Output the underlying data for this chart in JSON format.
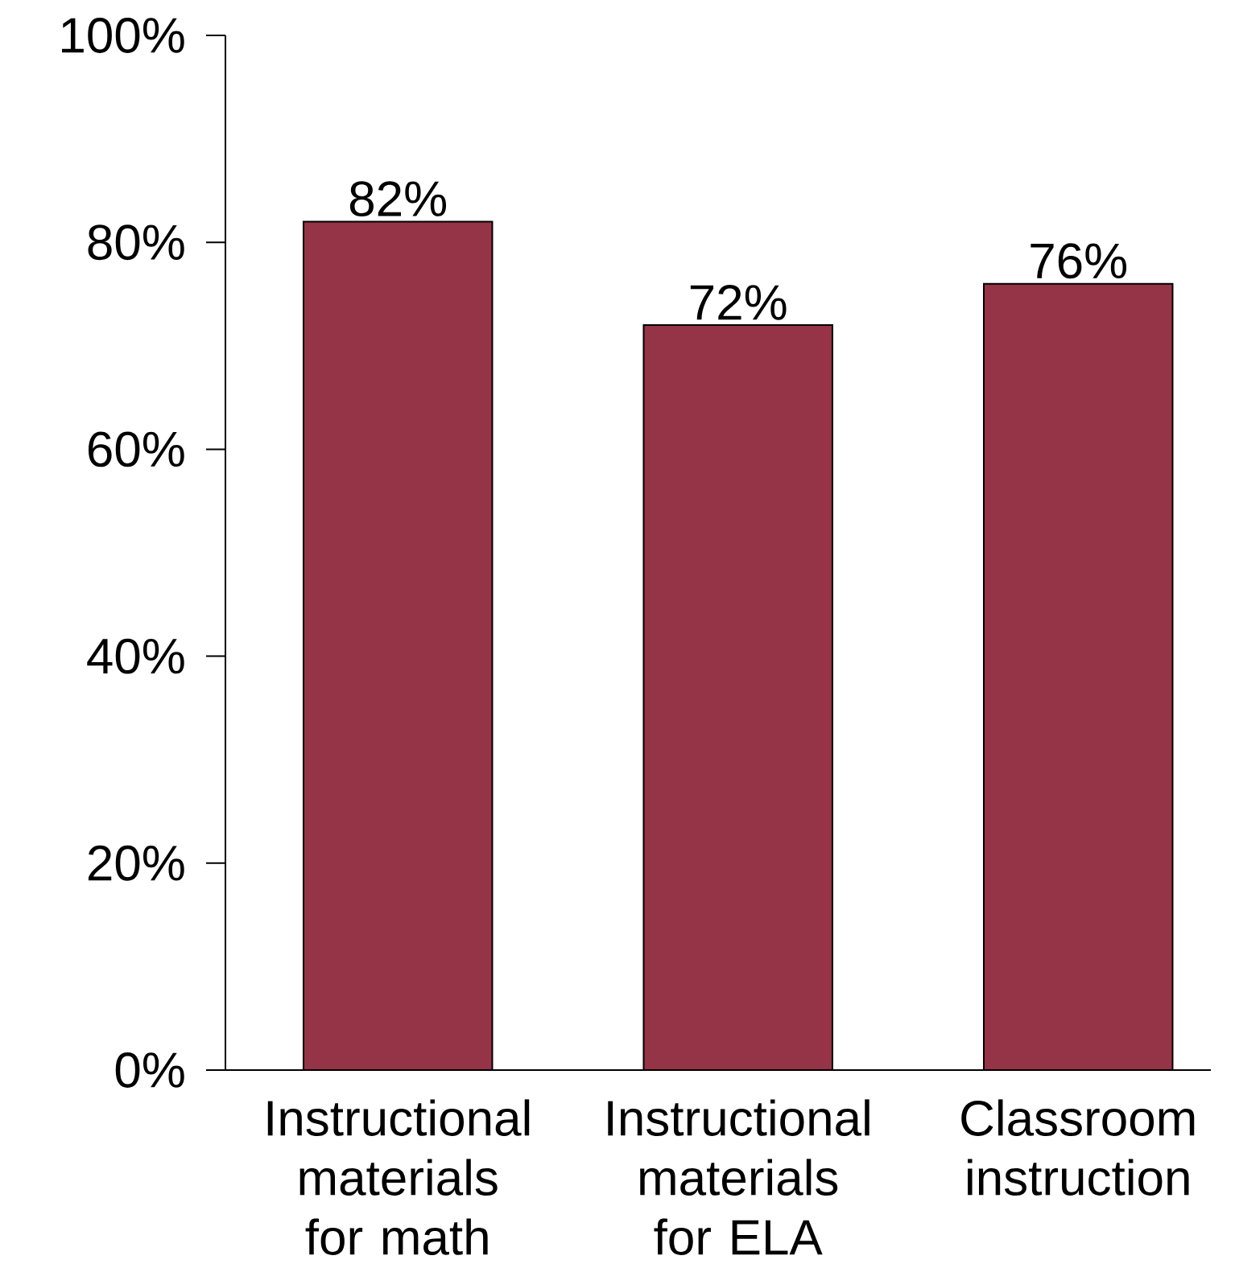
{
  "chart_data": {
    "type": "bar",
    "categories": [
      "Instructional materials for math",
      "Instructional materials for ELA",
      "Classroom instruction"
    ],
    "values": [
      82,
      72,
      76
    ],
    "value_labels": [
      "82%",
      "72%",
      "76%"
    ],
    "color": "#943446",
    "ylim": [
      0,
      100
    ],
    "yticks": [
      {
        "value": 0,
        "label": "0%"
      },
      {
        "value": 20,
        "label": "20%"
      },
      {
        "value": 40,
        "label": "40%"
      },
      {
        "value": 60,
        "label": "60%"
      },
      {
        "value": 80,
        "label": "80%"
      },
      {
        "value": 100,
        "label": "100%"
      }
    ]
  }
}
